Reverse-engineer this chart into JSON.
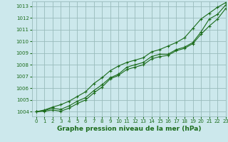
{
  "bg_color": "#cce8ec",
  "grid_color": "#99bbbb",
  "line_color": "#1a6b1a",
  "xlabel": "Graphe pression niveau de la mer (hPa)",
  "xlabel_color": "#1a6b1a",
  "ylim": [
    1003.6,
    1013.4
  ],
  "xlim": [
    -0.5,
    23
  ],
  "yticks": [
    1004,
    1005,
    1006,
    1007,
    1008,
    1009,
    1010,
    1011,
    1012,
    1013
  ],
  "xticks": [
    0,
    1,
    2,
    3,
    4,
    5,
    6,
    7,
    8,
    9,
    10,
    11,
    12,
    13,
    14,
    15,
    16,
    17,
    18,
    19,
    20,
    21,
    22,
    23
  ],
  "series": [
    [
      1004.0,
      1004.1,
      1004.3,
      1004.2,
      1004.5,
      1004.9,
      1005.2,
      1005.8,
      1006.3,
      1006.9,
      1007.2,
      1007.8,
      1008.0,
      1008.2,
      1008.7,
      1008.9,
      1008.9,
      1009.3,
      1009.5,
      1009.9,
      1010.8,
      1011.9,
      1012.3,
      1013.1
    ],
    [
      1004.0,
      1004.15,
      1004.4,
      1004.6,
      1004.9,
      1005.3,
      1005.7,
      1006.4,
      1006.9,
      1007.5,
      1007.9,
      1008.2,
      1008.4,
      1008.6,
      1009.1,
      1009.3,
      1009.6,
      1009.9,
      1010.3,
      1011.1,
      1011.9,
      1012.4,
      1012.9,
      1013.3
    ],
    [
      1004.0,
      1004.05,
      1004.15,
      1004.05,
      1004.3,
      1004.7,
      1005.0,
      1005.6,
      1006.1,
      1006.8,
      1007.1,
      1007.6,
      1007.8,
      1008.0,
      1008.5,
      1008.7,
      1008.8,
      1009.2,
      1009.4,
      1009.8,
      1010.6,
      1011.3,
      1011.9,
      1012.8
    ]
  ]
}
